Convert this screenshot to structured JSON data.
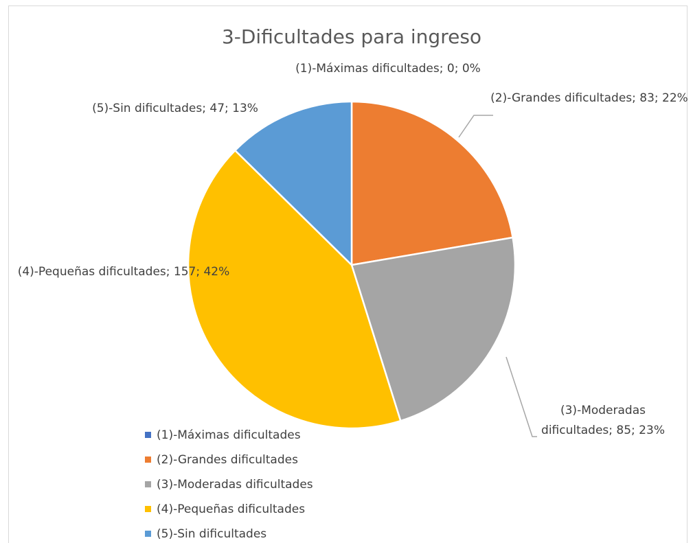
{
  "chart_data": {
    "type": "pie",
    "title": "3-Dificultades para ingreso",
    "categories": [
      "(1)-Máximas dificultades",
      "(2)-Grandes dificultades",
      "(3)-Moderadas dificultades",
      "(4)-Pequeñas dificultades",
      "(5)-Sin dificultades"
    ],
    "values": [
      0,
      83,
      85,
      157,
      47
    ],
    "value_labels": [
      "(1)-Máximas dificultades; 0; 0%",
      "(2)-Grandes dificultades; 83; 22%",
      "(3)-Moderadas dificultades; 85; 23%",
      "(4)-Pequeñas dificultades; 157; 42%",
      "(5)-Sin dificultades; 47; 13%"
    ],
    "colors": [
      "#4472c4",
      "#ed7d31",
      "#a5a5a5",
      "#ffc000",
      "#5b9bd5"
    ],
    "legend": "bottom-left"
  }
}
